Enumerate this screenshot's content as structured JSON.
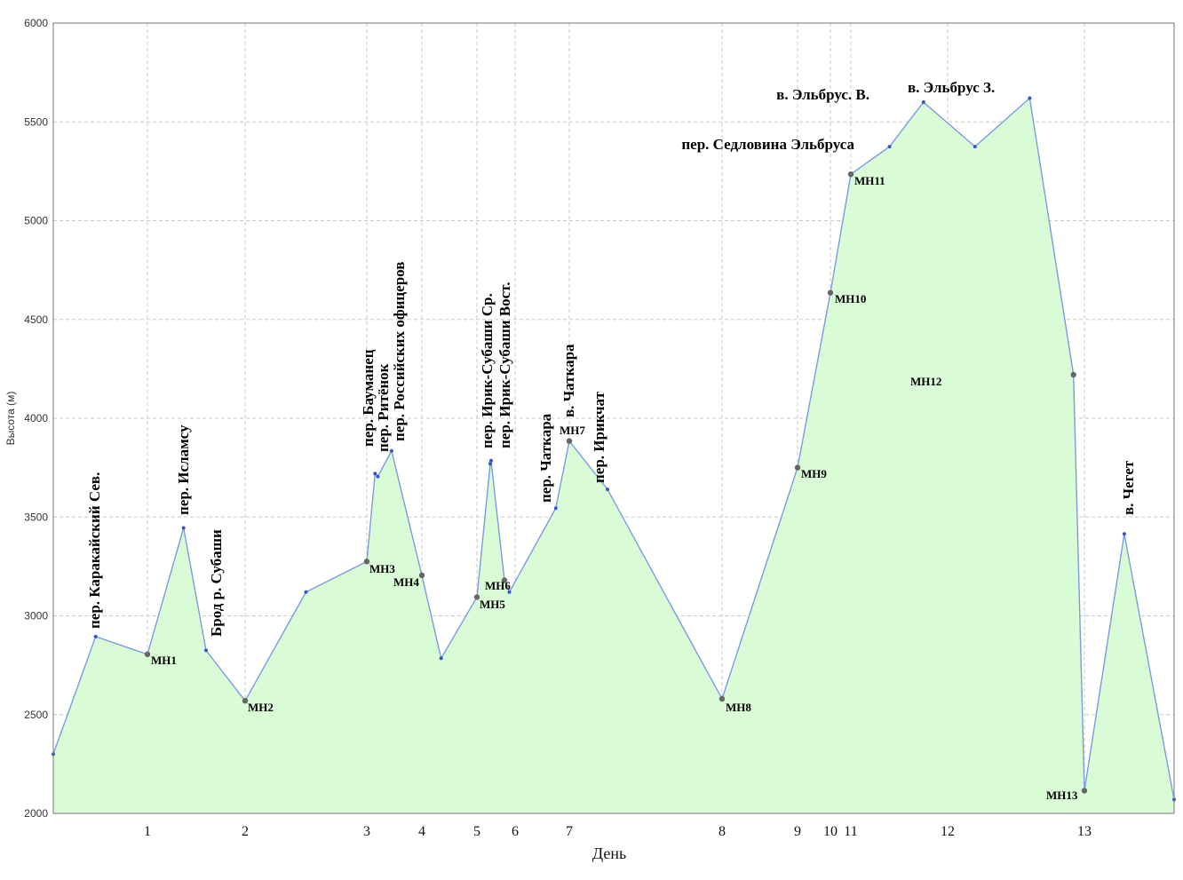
{
  "chart_data": {
    "type": "area",
    "xlabel": "День",
    "ylabel": "Высота (м)",
    "ylim": [
      2000,
      6000
    ],
    "yticks": [
      2000,
      2500,
      3000,
      3500,
      4000,
      4500,
      5000,
      5500,
      6000
    ],
    "grid": true,
    "colors": {
      "line": "#7b9be0",
      "fill": "#d9fbd6",
      "point": "#3355cc",
      "camp": "#666666",
      "grid": "#c8c8c8"
    },
    "xticks": [
      {
        "label": "1",
        "x": 1.0
      },
      {
        "label": "2",
        "x": 2.0
      },
      {
        "label": "3",
        "x": 3.0
      },
      {
        "label": "4",
        "x": 4.0
      },
      {
        "label": "5",
        "x": 5.0
      },
      {
        "label": "6",
        "x": 6.0
      },
      {
        "label": "7",
        "x": 7.0
      },
      {
        "label": "8",
        "x": 8.0
      },
      {
        "label": "9",
        "x": 9.0
      },
      {
        "label": "10",
        "x": 10.0
      },
      {
        "label": "11",
        "x": 11.0
      },
      {
        "label": "12",
        "x": 12.0
      },
      {
        "label": "13",
        "x": 13.0
      }
    ],
    "series": [
      {
        "points": [
          {
            "x": 0.0,
            "y": 2300
          },
          {
            "x": 0.45,
            "y": 2895,
            "label": "пер. Каракайский Сев."
          },
          {
            "x": 1.0,
            "y": 2805,
            "label": "МН1",
            "camp": true
          },
          {
            "x": 1.37,
            "y": 3445,
            "label": "пер. Исламсу"
          },
          {
            "x": 1.6,
            "y": 2825,
            "label": "Брод р. Субаши"
          },
          {
            "x": 2.0,
            "y": 2570,
            "label": "МН2",
            "camp": true
          },
          {
            "x": 2.5,
            "y": 3120
          },
          {
            "x": 3.0,
            "y": 3275,
            "label": "МН3",
            "camp": true
          },
          {
            "x": 3.15,
            "y": 3720,
            "label": "пер. Бауманец"
          },
          {
            "x": 3.2,
            "y": 3705,
            "label": "пер. Ритёнок"
          },
          {
            "x": 3.45,
            "y": 3835,
            "label": "пер. Российских офицеров"
          },
          {
            "x": 4.0,
            "y": 3205,
            "label": "МН4",
            "camp": true
          },
          {
            "x": 4.35,
            "y": 2785
          },
          {
            "x": 5.0,
            "y": 3095,
            "label": "МН5",
            "camp": true
          },
          {
            "x": 5.35,
            "y": 3770,
            "label": "пер. Ирик-Субаши Ср."
          },
          {
            "x": 5.37,
            "y": 3785,
            "label": "пер. Ирик-Субаши Вост."
          },
          {
            "x": 5.72,
            "y": 3180,
            "label": "МН6",
            "camp": true
          },
          {
            "x": 5.85,
            "y": 3120
          },
          {
            "x": 6.75,
            "y": 3545,
            "label": "пер. Чаткара"
          },
          {
            "x": 7.0,
            "y": 3885,
            "label": "МН7",
            "camp": true
          },
          {
            "x": 7.25,
            "y": 3640,
            "label": "пер. Ирикчат"
          },
          {
            "x": 8.0,
            "y": 2580,
            "label": "МН8",
            "camp": true
          },
          {
            "x": 9.0,
            "y": 3750,
            "label": "МН9",
            "camp": true
          },
          {
            "x": 10.0,
            "y": 4635,
            "label": "МН10",
            "camp": true
          },
          {
            "x": 11.0,
            "y": 5235,
            "label": "МН11",
            "camp": true
          },
          {
            "x": 11.4,
            "y": 5375,
            "label": "пер. Седловина Эльбруса"
          },
          {
            "x": 11.75,
            "y": 5600,
            "label": "в. Эльбрус. В."
          },
          {
            "x": 12.2,
            "y": 5375
          },
          {
            "x": 12.6,
            "y": 5620,
            "label": "в. Эльбрус З."
          },
          {
            "x": 12.92,
            "y": 4220,
            "label": "МН12",
            "camp": true
          },
          {
            "x": 13.0,
            "y": 2115,
            "label": "МН13",
            "camp": true
          },
          {
            "x": 13.4,
            "y": 3415,
            "label": "в. Чегет"
          },
          {
            "x": 13.9,
            "y": 2070
          }
        ]
      }
    ],
    "annotations": [
      "пер. Каракайский Сев.",
      "пер. Исламсу",
      "Брод р. Субаши",
      "пер. Бауманец",
      "пер. Ритёнок",
      "пер. Российских офицеров",
      "пер. Ирик-Субаши Ср.",
      "пер. Ирик-Субаши Вост.",
      "пер. Чаткара",
      "в. Чаткара",
      "пер. Ирикчат",
      "пер. Седловина Эльбруса",
      "в. Эльбрус. В.",
      "в. Эльбрус З.",
      "в. Чегет"
    ],
    "camps": [
      "МН1",
      "МН2",
      "МН3",
      "МН4",
      "МН5",
      "МН6",
      "МН7",
      "МН8",
      "МН9",
      "МН10",
      "МН11",
      "МН12",
      "МН13"
    ]
  }
}
